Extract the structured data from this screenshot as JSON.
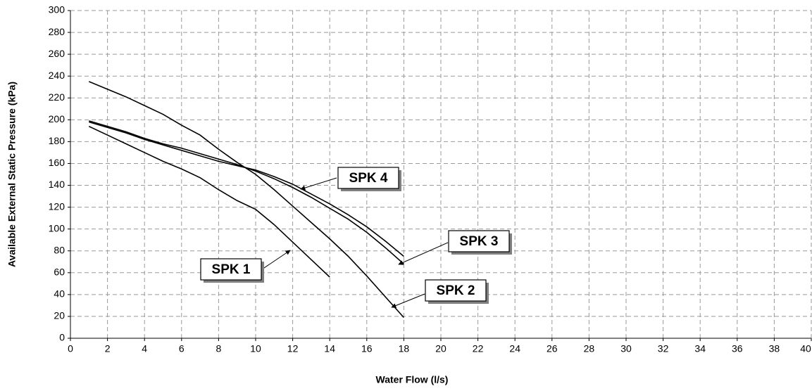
{
  "chart_data": {
    "type": "line",
    "xlabel": "Water Flow (l/s)",
    "ylabel": "Available External Static Pressure (kPa)",
    "x": [
      1,
      2,
      3,
      4,
      5,
      6,
      7,
      8,
      9,
      10,
      11,
      12,
      13,
      14,
      15,
      16,
      17,
      18
    ],
    "series": [
      {
        "name": "SPK 1",
        "color": "#000000",
        "values": [
          194,
          186,
          178,
          170,
          162,
          155,
          147,
          136,
          126,
          118,
          104,
          88,
          72,
          56,
          null,
          null,
          null,
          null
        ]
      },
      {
        "name": "SPK 2",
        "color": "#000000",
        "values": [
          235,
          228,
          221,
          213,
          205,
          195,
          186,
          173,
          161,
          150,
          136,
          121,
          106,
          91,
          75,
          57,
          38,
          19
        ]
      },
      {
        "name": "SPK 3",
        "color": "#000000",
        "values": [
          199,
          194,
          189,
          183,
          178,
          174,
          169,
          164,
          159,
          153,
          146,
          138,
          129,
          119,
          109,
          97,
          83,
          68
        ]
      },
      {
        "name": "SPK 4",
        "color": "#000000",
        "values": [
          198,
          193,
          188,
          182,
          177,
          172,
          167,
          162,
          158,
          154,
          148,
          141,
          132,
          123,
          113,
          102,
          89,
          75
        ]
      }
    ],
    "xlim": [
      0,
      40
    ],
    "xticks": [
      0,
      2,
      4,
      6,
      8,
      10,
      12,
      14,
      16,
      18,
      20,
      22,
      24,
      26,
      28,
      30,
      32,
      34,
      36,
      38,
      40
    ],
    "ylim": [
      0,
      300
    ],
    "yticks": [
      0,
      20,
      40,
      60,
      80,
      100,
      120,
      140,
      160,
      180,
      200,
      220,
      240,
      260,
      280,
      300
    ],
    "grid": true
  }
}
